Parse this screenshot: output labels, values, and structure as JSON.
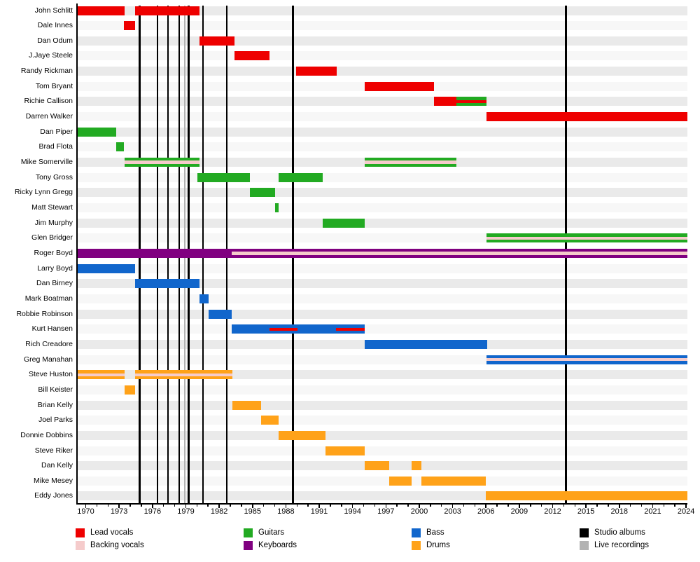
{
  "chart_data": {
    "type": "bar",
    "subtype": "band-member-gantt-timeline",
    "title": "",
    "x_axis": {
      "start": 1969.21,
      "end": 2024.12,
      "major_ticks": [
        1970,
        1973,
        1976,
        1979,
        1982,
        1985,
        1988,
        1991,
        1994,
        1997,
        2000,
        2003,
        2006,
        2009,
        2012,
        2015,
        2018,
        2021,
        2024
      ],
      "minor_tick_every": 1
    },
    "colors": {
      "lead_vocals": "#ee0000",
      "backing_vocals": "#f5cbcb",
      "guitars": "#22aa22",
      "keyboards": "#800080",
      "bass": "#1166cc",
      "drums": "#ffa219",
      "studio_albums": "#000000",
      "live_recordings": "#b3b3b3"
    },
    "row_band_colors": [
      "#eaeaea",
      "#f7f7f7"
    ],
    "albums": {
      "studio": [
        1974.85,
        1976.45,
        1977.4,
        1978.4,
        1979.25,
        1980.55,
        1982.7,
        1988.65,
        2013.2
      ],
      "live": [
        1978.9
      ]
    },
    "members": [
      {
        "name": "John Schlitt",
        "segments": [
          {
            "start": 1969.21,
            "end": 1973.5,
            "color": "lead_vocals"
          },
          {
            "start": 1974.45,
            "end": 1980.25,
            "color": "lead_vocals"
          }
        ],
        "overlays": []
      },
      {
        "name": "Dale Innes",
        "segments": [
          {
            "start": 1973.45,
            "end": 1974.45,
            "color": "lead_vocals"
          }
        ],
        "overlays": []
      },
      {
        "name": "Dan Odum",
        "segments": [
          {
            "start": 1980.25,
            "end": 1983.4,
            "color": "lead_vocals"
          }
        ],
        "overlays": []
      },
      {
        "name": "J.Jaye Steele",
        "segments": [
          {
            "start": 1983.4,
            "end": 1986.5,
            "color": "lead_vocals"
          }
        ],
        "overlays": []
      },
      {
        "name": "Randy Rickman",
        "segments": [
          {
            "start": 1988.95,
            "end": 1992.6,
            "color": "lead_vocals"
          }
        ],
        "overlays": []
      },
      {
        "name": "Tom Bryant",
        "segments": [
          {
            "start": 1995.1,
            "end": 2001.35,
            "color": "lead_vocals"
          }
        ],
        "overlays": []
      },
      {
        "name": "Richie Callison",
        "segments": [
          {
            "start": 2001.35,
            "end": 2003.35,
            "color": "lead_vocals"
          },
          {
            "start": 2003.35,
            "end": 2006.05,
            "color": "guitars"
          }
        ],
        "overlays": [
          {
            "start": 2003.35,
            "end": 2006.05,
            "color": "lead_vocals"
          }
        ]
      },
      {
        "name": "Darren Walker",
        "segments": [
          {
            "start": 2006.05,
            "end": 2024.12,
            "color": "lead_vocals"
          }
        ],
        "overlays": []
      },
      {
        "name": "Dan Piper",
        "segments": [
          {
            "start": 1969.21,
            "end": 1972.75,
            "color": "guitars"
          }
        ],
        "overlays": []
      },
      {
        "name": "Brad Flota",
        "segments": [
          {
            "start": 1972.75,
            "end": 1973.45,
            "color": "guitars"
          }
        ],
        "overlays": []
      },
      {
        "name": "Mike Somerville",
        "segments": [
          {
            "start": 1973.5,
            "end": 1980.2,
            "color": "guitars"
          },
          {
            "start": 1995.1,
            "end": 2003.35,
            "color": "guitars"
          }
        ],
        "overlays": [
          {
            "start": 1973.5,
            "end": 1980.2,
            "color": "backing_vocals"
          },
          {
            "start": 1995.1,
            "end": 2003.35,
            "color": "backing_vocals"
          }
        ]
      },
      {
        "name": "Tony Gross",
        "segments": [
          {
            "start": 1980.05,
            "end": 1984.75,
            "color": "guitars"
          },
          {
            "start": 1987.35,
            "end": 1991.3,
            "color": "guitars"
          }
        ],
        "overlays": []
      },
      {
        "name": "Ricky Lynn Gregg",
        "segments": [
          {
            "start": 1984.75,
            "end": 1987.0,
            "color": "guitars"
          }
        ],
        "overlays": []
      },
      {
        "name": "Matt Stewart",
        "segments": [
          {
            "start": 1987.0,
            "end": 1987.35,
            "color": "guitars"
          }
        ],
        "overlays": []
      },
      {
        "name": "Jim Murphy",
        "segments": [
          {
            "start": 1991.3,
            "end": 1995.1,
            "color": "guitars"
          }
        ],
        "overlays": []
      },
      {
        "name": "Glen Bridger",
        "segments": [
          {
            "start": 2006.05,
            "end": 2024.12,
            "color": "guitars"
          }
        ],
        "overlays": [
          {
            "start": 2006.05,
            "end": 2024.12,
            "color": "backing_vocals"
          }
        ]
      },
      {
        "name": "Roger Boyd",
        "segments": [
          {
            "start": 1969.21,
            "end": 2024.12,
            "color": "keyboards"
          }
        ],
        "overlays": [
          {
            "start": 1983.15,
            "end": 2024.12,
            "color": "backing_vocals"
          }
        ]
      },
      {
        "name": "Larry Boyd",
        "segments": [
          {
            "start": 1969.21,
            "end": 1974.45,
            "color": "bass"
          }
        ],
        "overlays": []
      },
      {
        "name": "Dan Birney",
        "segments": [
          {
            "start": 1974.45,
            "end": 1980.2,
            "color": "bass"
          }
        ],
        "overlays": []
      },
      {
        "name": "Mark Boatman",
        "segments": [
          {
            "start": 1980.2,
            "end": 1981.05,
            "color": "bass"
          }
        ],
        "overlays": []
      },
      {
        "name": "Robbie Robinson",
        "segments": [
          {
            "start": 1981.05,
            "end": 1983.15,
            "color": "bass"
          }
        ],
        "overlays": []
      },
      {
        "name": "Kurt Hansen",
        "segments": [
          {
            "start": 1983.15,
            "end": 1995.1,
            "color": "bass"
          }
        ],
        "overlays": [
          {
            "start": 1986.5,
            "end": 1989.05,
            "color": "lead_vocals"
          },
          {
            "start": 1992.5,
            "end": 1995.1,
            "color": "lead_vocals"
          }
        ]
      },
      {
        "name": "Rich Creadore",
        "segments": [
          {
            "start": 1995.1,
            "end": 2006.1,
            "color": "bass"
          }
        ],
        "overlays": []
      },
      {
        "name": "Greg Manahan",
        "segments": [
          {
            "start": 2006.05,
            "end": 2024.12,
            "color": "bass"
          }
        ],
        "overlays": [
          {
            "start": 2006.05,
            "end": 2024.12,
            "color": "backing_vocals"
          }
        ]
      },
      {
        "name": "Steve Huston",
        "segments": [
          {
            "start": 1969.21,
            "end": 1973.5,
            "color": "drums"
          },
          {
            "start": 1974.45,
            "end": 1983.2,
            "color": "drums"
          }
        ],
        "overlays": [
          {
            "start": 1969.21,
            "end": 1973.5,
            "color": "backing_vocals"
          },
          {
            "start": 1974.45,
            "end": 1983.2,
            "color": "backing_vocals"
          }
        ]
      },
      {
        "name": "Bill Keister",
        "segments": [
          {
            "start": 1973.5,
            "end": 1974.45,
            "color": "drums"
          }
        ],
        "overlays": []
      },
      {
        "name": "Brian Kelly",
        "segments": [
          {
            "start": 1983.2,
            "end": 1985.75,
            "color": "drums"
          }
        ],
        "overlays": []
      },
      {
        "name": "Joel Parks",
        "segments": [
          {
            "start": 1985.75,
            "end": 1987.35,
            "color": "drums"
          }
        ],
        "overlays": []
      },
      {
        "name": "Donnie Dobbins",
        "segments": [
          {
            "start": 1987.35,
            "end": 1991.55,
            "color": "drums"
          }
        ],
        "overlays": []
      },
      {
        "name": "Steve Riker",
        "segments": [
          {
            "start": 1991.55,
            "end": 1995.1,
            "color": "drums"
          }
        ],
        "overlays": []
      },
      {
        "name": "Dan Kelly",
        "segments": [
          {
            "start": 1995.1,
            "end": 1997.3,
            "color": "drums"
          },
          {
            "start": 1999.3,
            "end": 2000.2,
            "color": "drums"
          }
        ],
        "overlays": []
      },
      {
        "name": "Mike Mesey",
        "segments": [
          {
            "start": 1997.3,
            "end": 1999.3,
            "color": "drums"
          },
          {
            "start": 2000.2,
            "end": 2006.0,
            "color": "drums"
          }
        ],
        "overlays": []
      },
      {
        "name": "Eddy Jones",
        "segments": [
          {
            "start": 2006.0,
            "end": 2024.12,
            "color": "drums"
          }
        ],
        "overlays": []
      }
    ],
    "legend": {
      "columns": [
        {
          "items": [
            {
              "label": "Lead vocals",
              "color_key": "lead_vocals"
            },
            {
              "label": "Backing vocals",
              "color_key": "backing_vocals"
            }
          ]
        },
        {
          "items": [
            {
              "label": "Guitars",
              "color_key": "guitars"
            },
            {
              "label": "Keyboards",
              "color_key": "keyboards"
            }
          ]
        },
        {
          "items": [
            {
              "label": "Bass",
              "color_key": "bass"
            },
            {
              "label": "Drums",
              "color_key": "drums"
            }
          ]
        },
        {
          "items": [
            {
              "label": "Studio albums",
              "color_key": "studio_albums"
            },
            {
              "label": "Live recordings",
              "color_key": "live_recordings"
            }
          ]
        }
      ],
      "legend_position": "bottom"
    }
  }
}
